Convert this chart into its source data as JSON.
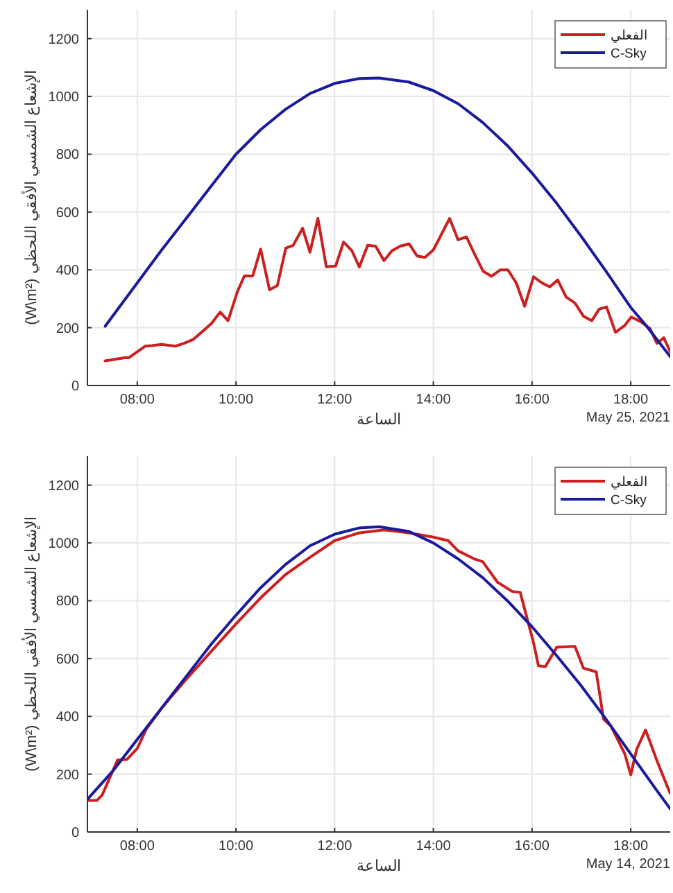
{
  "chart_data": [
    {
      "type": "line",
      "xlabel": "الساعة",
      "ylabel": "الإشعاع الشمسي الأفقي اللحظي (W\\m²)",
      "annotations": [
        "May 25, 2021"
      ],
      "xlim": [
        6.99,
        18.8
      ],
      "ylim": [
        0,
        1300
      ],
      "xticks": [
        {
          "value": 8,
          "label": "08:00"
        },
        {
          "value": 10,
          "label": "10:00"
        },
        {
          "value": 12,
          "label": "12:00"
        },
        {
          "value": 14,
          "label": "14:00"
        },
        {
          "value": 16,
          "label": "16:00"
        },
        {
          "value": 18,
          "label": "18:00"
        }
      ],
      "yticks": [
        0,
        200,
        400,
        600,
        800,
        1000,
        1200
      ],
      "grid": true,
      "legend": "top right",
      "line_style": "solid",
      "marker": "none",
      "series": [
        {
          "name": "الفعلي",
          "color": "#cc1f1f",
          "x": [
            7.35,
            7.74,
            7.83,
            8.16,
            8.3,
            8.49,
            8.77,
            8.95,
            9.14,
            9.37,
            9.51,
            9.68,
            9.84,
            10.03,
            10.17,
            10.34,
            10.5,
            10.68,
            10.84,
            11.01,
            11.16,
            11.35,
            11.5,
            11.66,
            11.83,
            12.02,
            12.18,
            12.35,
            12.5,
            12.67,
            12.83,
            13.0,
            13.16,
            13.33,
            13.51,
            13.67,
            13.83,
            14.0,
            14.17,
            14.33,
            14.5,
            14.67,
            14.84,
            15.01,
            15.18,
            15.36,
            15.51,
            15.68,
            15.85,
            16.03,
            16.2,
            16.36,
            16.52,
            16.69,
            16.87,
            17.04,
            17.21,
            17.36,
            17.51,
            17.69,
            17.88,
            18.01,
            18.2,
            18.39,
            18.53,
            18.67,
            18.8
          ],
          "values": [
            85,
            96,
            96,
            136,
            138,
            142,
            136,
            146,
            160,
            194,
            216,
            254,
            224,
            325,
            379,
            379,
            472,
            331,
            346,
            475,
            485,
            544,
            461,
            578,
            411,
            413,
            496,
            466,
            410,
            485,
            482,
            432,
            466,
            482,
            490,
            448,
            443,
            469,
            525,
            578,
            504,
            514,
            453,
            395,
            378,
            400,
            400,
            355,
            274,
            376,
            355,
            341,
            365,
            306,
            285,
            240,
            224,
            264,
            272,
            184,
            208,
            237,
            221,
            197,
            146,
            165,
            117
          ]
        },
        {
          "name": "C-Sky",
          "color": "#1a1a9e",
          "x": [
            7.35,
            8,
            8.5,
            9,
            9.5,
            10,
            10.5,
            11,
            11.5,
            12,
            12.5,
            12.9,
            13.5,
            14,
            14.5,
            15,
            15.5,
            16,
            16.5,
            17,
            17.5,
            18,
            18.3,
            18.8
          ],
          "values": [
            205,
            355,
            470,
            580,
            690,
            800,
            885,
            955,
            1010,
            1045,
            1062,
            1064,
            1050,
            1020,
            975,
            910,
            830,
            735,
            630,
            515,
            395,
            270,
            210,
            100
          ]
        }
      ]
    },
    {
      "type": "line",
      "xlabel": "الساعة",
      "ylabel": "الإشعاع الشمسي الأفقي اللحظي (W\\m²)",
      "annotations": [
        "May 14, 2021"
      ],
      "xlim": [
        6.99,
        18.8
      ],
      "ylim": [
        0,
        1300
      ],
      "xticks": [
        {
          "value": 8,
          "label": "08:00"
        },
        {
          "value": 10,
          "label": "10:00"
        },
        {
          "value": 12,
          "label": "12:00"
        },
        {
          "value": 14,
          "label": "14:00"
        },
        {
          "value": 16,
          "label": "16:00"
        },
        {
          "value": 18,
          "label": "18:00"
        }
      ],
      "yticks": [
        0,
        200,
        400,
        600,
        800,
        1000,
        1200
      ],
      "grid": true,
      "legend": "top right",
      "line_style": "solid",
      "marker": "none",
      "series": [
        {
          "name": "الفعلي",
          "color": "#cc1f1f",
          "x": [
            7.0,
            7.18,
            7.29,
            7.6,
            7.79,
            8.0,
            8.19,
            8.5,
            9.0,
            9.5,
            10.0,
            10.5,
            11.0,
            11.5,
            12.0,
            12.5,
            13.0,
            13.5,
            14.0,
            14.3,
            14.5,
            14.84,
            15.0,
            15.3,
            15.6,
            15.76,
            16.03,
            16.13,
            16.27,
            16.5,
            16.87,
            17.04,
            17.3,
            17.45,
            17.6,
            17.88,
            18.0,
            18.12,
            18.3,
            18.55,
            18.8
          ],
          "values": [
            109,
            109,
            128,
            249,
            251,
            289,
            358,
            430,
            530,
            625,
            720,
            810,
            890,
            950,
            1008,
            1035,
            1045,
            1035,
            1020,
            1008,
            973,
            944,
            935,
            864,
            832,
            829,
            655,
            575,
            572,
            639,
            642,
            567,
            554,
            390,
            366,
            270,
            198,
            286,
            353,
            238,
            133
          ]
        },
        {
          "name": "C-Sky",
          "color": "#1a1a9e",
          "x": [
            7.0,
            7.5,
            8,
            8.5,
            9,
            9.5,
            10,
            10.5,
            11,
            11.5,
            12,
            12.5,
            12.9,
            13.5,
            14,
            14.5,
            15,
            15.5,
            16,
            16.5,
            17,
            17.5,
            18,
            18.5,
            18.8
          ],
          "values": [
            115,
            210,
            320,
            430,
            540,
            650,
            750,
            845,
            925,
            990,
            1030,
            1052,
            1056,
            1040,
            1000,
            945,
            880,
            800,
            710,
            610,
            505,
            390,
            270,
            150,
            80
          ]
        }
      ]
    }
  ]
}
